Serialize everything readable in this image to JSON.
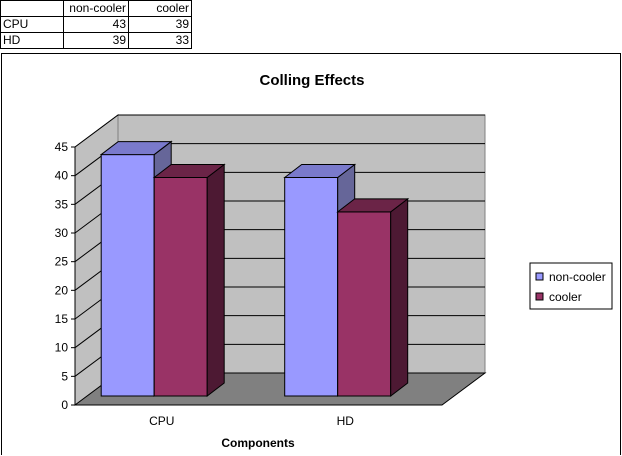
{
  "table": {
    "header": [
      "",
      "non-cooler",
      "cooler"
    ],
    "rows": [
      [
        "CPU",
        "43",
        "39"
      ],
      [
        "HD",
        "39",
        "33"
      ]
    ]
  },
  "chart_data": {
    "type": "bar",
    "title": "Colling Effects",
    "xlabel": "Components",
    "ylabel": "",
    "categories": [
      "CPU",
      "HD"
    ],
    "series": [
      {
        "name": "non-cooler",
        "values": [
          43,
          39
        ],
        "color": "#9999ff"
      },
      {
        "name": "cooler",
        "values": [
          39,
          33
        ],
        "color": "#993366"
      }
    ],
    "ylim": [
      0,
      45
    ],
    "yticks": [
      "0",
      "5",
      "10",
      "15",
      "20",
      "25",
      "30",
      "35",
      "40",
      "45"
    ],
    "grid": true,
    "legend_position": "right",
    "style": "3d"
  }
}
